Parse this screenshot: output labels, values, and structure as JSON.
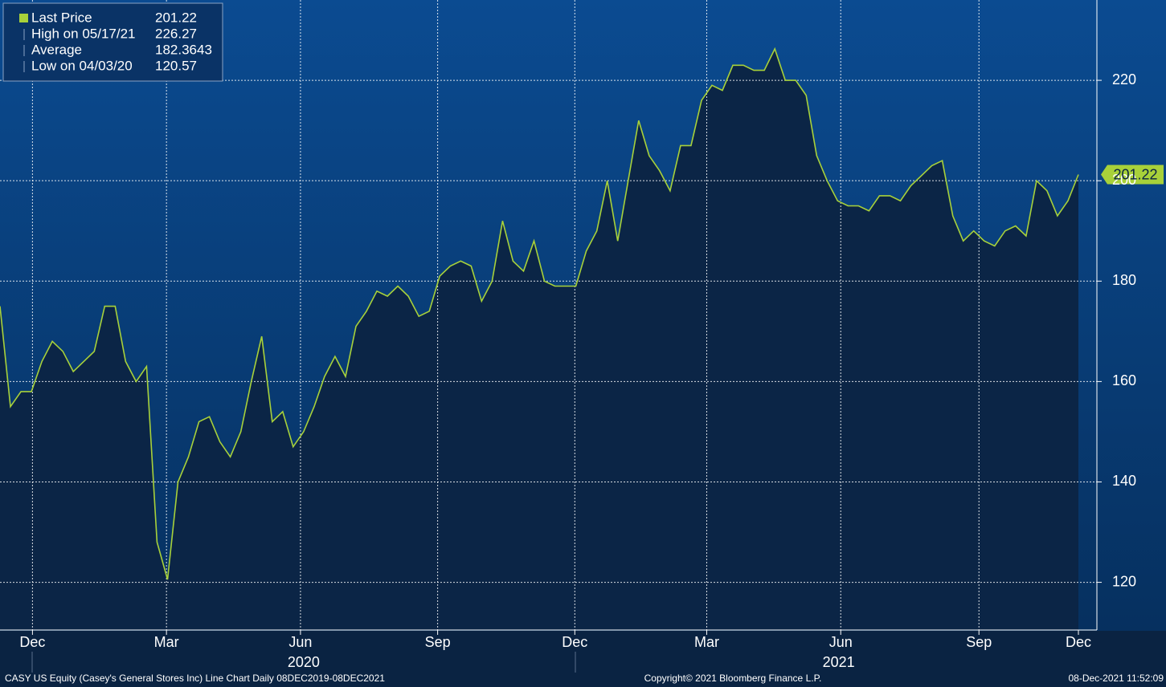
{
  "chart_data": {
    "type": "line",
    "series": [
      {
        "name": "Last Price",
        "color": "#a8d13a",
        "values": [
          175,
          155,
          158,
          158,
          164,
          168,
          166,
          162,
          164,
          166,
          175,
          175,
          164,
          160,
          163,
          128,
          120.57,
          140,
          145,
          152,
          153,
          148,
          145,
          150,
          160,
          169,
          152,
          154,
          147,
          150,
          155,
          161,
          165,
          161,
          171,
          174,
          178,
          177,
          179,
          177,
          173,
          174,
          181,
          183,
          184,
          183,
          176,
          180,
          192,
          184,
          182,
          188,
          180,
          179,
          179,
          179,
          186,
          190,
          200,
          188,
          200,
          212,
          205,
          202,
          198,
          207,
          207,
          216,
          219,
          218,
          223,
          223,
          222,
          222,
          226.27,
          220,
          220,
          217,
          205,
          200,
          196,
          195,
          195,
          194,
          197,
          197,
          196,
          199,
          201,
          203,
          204,
          193,
          188,
          190,
          188,
          187,
          190,
          191,
          189,
          200,
          198,
          193,
          196,
          201.22
        ]
      }
    ],
    "xlim": [
      0,
      103
    ],
    "xticks": [
      {
        "value": 3.1,
        "label": "Dec"
      },
      {
        "value": 15.9,
        "label": "Mar"
      },
      {
        "value": 28.7,
        "label": "Jun"
      },
      {
        "value": 41.8,
        "label": "Sep"
      },
      {
        "value": 54.9,
        "label": "Dec"
      },
      {
        "value": 67.5,
        "label": "Mar"
      },
      {
        "value": 80.3,
        "label": "Jun"
      },
      {
        "value": 93.5,
        "label": "Sep"
      },
      {
        "value": 103,
        "label": "Dec"
      }
    ],
    "year_ticks": [
      {
        "value": 29.0,
        "label": "2020"
      },
      {
        "value": 80.1,
        "label": "2021"
      }
    ],
    "ylim": [
      110.5,
      236
    ],
    "yticks": [
      120,
      140,
      160,
      180,
      200,
      220
    ],
    "grid": true,
    "legend_stats": [
      {
        "label": "Last Price",
        "value": "201.22"
      },
      {
        "label": "High on 05/17/21",
        "value": "226.27"
      },
      {
        "label": "Average",
        "value": "182.3643"
      },
      {
        "label": "Low on 04/03/20",
        "value": "120.57"
      }
    ],
    "footer": {
      "left": "CASY US Equity (Casey's General Stores Inc) Line Chart  Daily 08DEC2019-08DEC2021",
      "center": "Copyright© 2021 Bloomberg Finance L.P.",
      "right": "08-Dec-2021 11:52:09"
    }
  }
}
